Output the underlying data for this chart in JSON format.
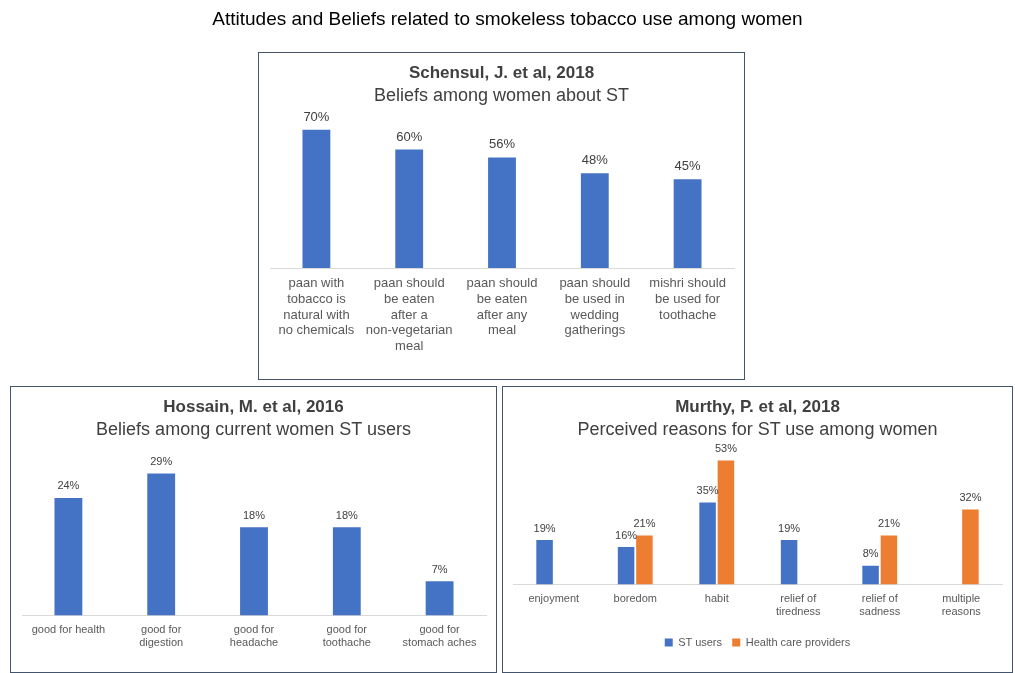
{
  "chart_data": [
    {
      "type": "bar",
      "title": "Schensul, J. et al, 2018",
      "subtitle": "Beliefs among women about ST",
      "annotations": [
        "Attitudes and Beliefs related to smokeless tobacco use among women"
      ],
      "categories": [
        "paan with tobacco is natural with no chemicals",
        "paan should be eaten after a non-vegetarian meal",
        "paan should be eaten after any meal",
        "paan should be used in wedding gatherings",
        "mishri should be used for toothache"
      ],
      "values": [
        70,
        60,
        56,
        48,
        45
      ],
      "color": "#4472c4",
      "value_labels": [
        "70%",
        "60%",
        "56%",
        "48%",
        "45%"
      ]
    },
    {
      "type": "bar",
      "title": "Hossain, M. et al, 2016",
      "subtitle": "Beliefs among current women ST users",
      "categories": [
        "good for health",
        "good for digestion",
        "good for headache",
        "good for toothache",
        "good for stomach aches"
      ],
      "values": [
        24,
        29,
        18,
        18,
        7
      ],
      "color": "#4472c4",
      "value_labels": [
        "24%",
        "29%",
        "18%",
        "18%",
        "7%"
      ]
    },
    {
      "type": "bar",
      "title": "Murthy, P. et al, 2018",
      "subtitle": "Perceived reasons for ST use among women",
      "categories": [
        "enjoyment",
        "boredom",
        "habit",
        "relief of tiredness",
        "relief of sadness",
        "multiple reasons"
      ],
      "legend": "bottom",
      "series": [
        {
          "name": "ST users",
          "color": "#4472c4",
          "values": [
            19,
            16,
            35,
            19,
            8,
            null
          ],
          "value_labels": [
            "19%",
            "16%",
            "35%",
            "19%",
            "8%",
            null
          ]
        },
        {
          "name": "Health care providers",
          "color": "#ed7d31",
          "values": [
            null,
            21,
            53,
            null,
            21,
            32
          ],
          "value_labels": [
            null,
            "21%",
            "53%",
            null,
            "21%",
            "32%"
          ]
        }
      ]
    }
  ]
}
